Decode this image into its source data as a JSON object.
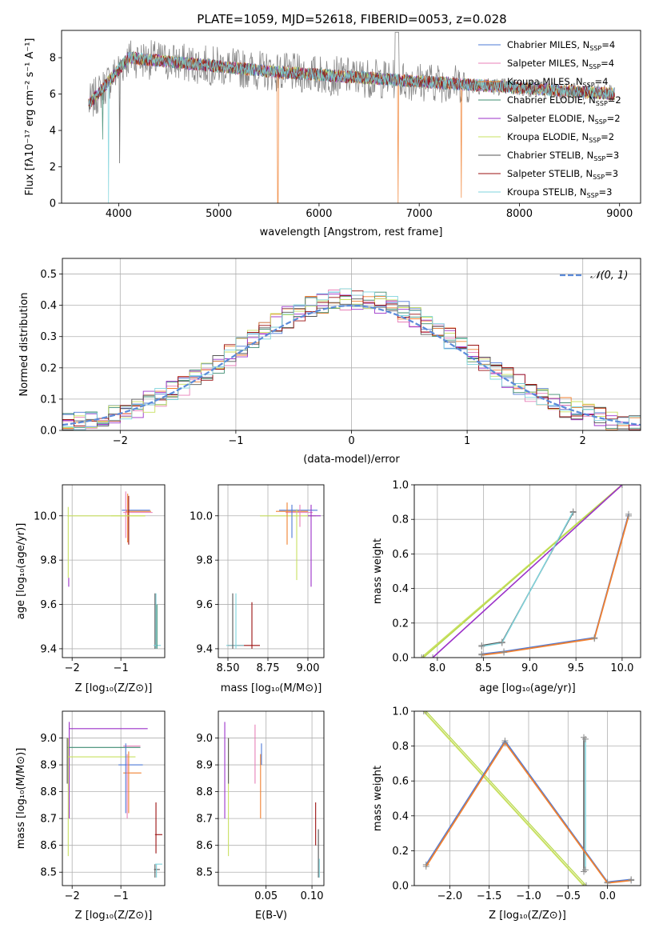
{
  "chart_data": [
    {
      "type": "line",
      "title": "PLATE=1059, MJD=52618, FIBERID=0053, z=0.028",
      "xlabel": "wavelength [Angstrom, rest frame]",
      "ylabel": "Flux [fλ10⁻¹⁷ erg cm⁻² s⁻¹ A⁻¹]",
      "xlim": [
        3430,
        9210
      ],
      "ylim": [
        0,
        9.5
      ],
      "xticks": [
        4000,
        5000,
        6000,
        7000,
        8000,
        9000
      ],
      "yticks": [
        0,
        2,
        4,
        6,
        8
      ],
      "grid": false,
      "legend_position": "top-right",
      "spectrum_range": [
        3700,
        8950
      ],
      "series": [
        {
          "name": "Chabrier MILES, N_SSP=4",
          "label_main": "Chabrier MILES, N",
          "label_sub": "SSP",
          "label_tail": "=4",
          "color": "#4e79d6"
        },
        {
          "name": "Salpeter MILES, N_SSP=4",
          "label_main": "Salpeter MILES, N",
          "label_sub": "SSP",
          "label_tail": "=4",
          "color": "#e87fb8"
        },
        {
          "name": "Kroupa MILES, N_SSP=4",
          "label_main": "Kroupa MILES, N",
          "label_sub": "SSP",
          "label_tail": "=4",
          "color": "#f08030"
        },
        {
          "name": "Chabrier ELODIE, N_SSP=2",
          "label_main": "Chabrier ELODIE, N",
          "label_sub": "SSP",
          "label_tail": "=2",
          "color": "#3f8c72"
        },
        {
          "name": "Salpeter ELODIE, N_SSP=2",
          "label_main": "Salpeter ELODIE, N",
          "label_sub": "SSP",
          "label_tail": "=2",
          "color": "#9b30c8"
        },
        {
          "name": "Kroupa ELODIE, N_SSP=2",
          "label_main": "Kroupa ELODIE, N",
          "label_sub": "SSP",
          "label_tail": "=2",
          "color": "#c8e060"
        },
        {
          "name": "Chabrier STELIB, N_SSP=3",
          "label_main": "Chabrier STELIB, N",
          "label_sub": "SSP",
          "label_tail": "=3",
          "color": "#555555"
        },
        {
          "name": "Salpeter STELIB, N_SSP=3",
          "label_main": "Salpeter STELIB, N",
          "label_sub": "SSP",
          "label_tail": "=3",
          "color": "#9b1111"
        },
        {
          "name": "Kroupa STELIB, N_SSP=3",
          "label_main": "Kroupa STELIB, N",
          "label_sub": "SSP",
          "label_tail": "=3",
          "color": "#7fd4dc"
        }
      ],
      "data_series_color": "#888888"
    },
    {
      "type": "area",
      "xlabel": "(data-model)/error",
      "ylabel": "Normed distribution",
      "xlim": [
        -2.5,
        2.5
      ],
      "ylim": [
        0,
        0.55
      ],
      "xticks": [
        -2,
        -1,
        0,
        1,
        2
      ],
      "yticks": [
        0.0,
        0.1,
        0.2,
        0.3,
        0.4,
        0.5
      ],
      "grid": true,
      "legend_position": "top-right",
      "bin_width": 0.1,
      "gaussian_label": "𝒩(0, 1)",
      "gaussian_color": "#5b8bd9",
      "histogram_peak": 0.5
    },
    {
      "type": "scatter",
      "xlabel": "Z [log₁₀(Z/Z⊙)]",
      "ylabel": "age  [log₁₀(age/yr)]",
      "xlim": [
        -2.2,
        -0.1
      ],
      "ylim": [
        9.36,
        10.14
      ],
      "xticks": [
        -2,
        -1
      ],
      "yticks": [
        9.4,
        9.6,
        9.8,
        10.0
      ],
      "grid": true
    },
    {
      "type": "scatter",
      "xlabel": "mass [log₁₀(M/M⊙)]",
      "ylabel": "",
      "xlim": [
        8.44,
        9.1
      ],
      "ylim": [
        9.36,
        10.14
      ],
      "xticks": [
        8.5,
        8.75,
        9.0
      ],
      "yticks": [
        9.4,
        9.6,
        9.8,
        10.0
      ],
      "grid": true
    },
    {
      "type": "line",
      "xlabel": "age  [log₁₀(age/yr)]",
      "ylabel": "mass weight",
      "xlim": [
        7.75,
        10.2
      ],
      "ylim": [
        0,
        1
      ],
      "xticks": [
        8.0,
        8.5,
        9.0,
        9.5,
        10.0
      ],
      "yticks": [
        0.0,
        0.2,
        0.4,
        0.6,
        0.8,
        1.0
      ],
      "grid": true
    },
    {
      "type": "scatter",
      "xlabel": "Z [log₁₀(Z/Z⊙)]",
      "ylabel": "mass [log₁₀(M/M⊙)]",
      "xlim": [
        -2.2,
        -0.1
      ],
      "ylim": [
        8.45,
        9.1
      ],
      "xticks": [
        -2,
        -1
      ],
      "yticks": [
        8.5,
        8.6,
        8.7,
        8.8,
        8.9,
        9.0
      ],
      "grid": true
    },
    {
      "type": "scatter",
      "xlabel": "E(B-V)",
      "ylabel": "",
      "xlim": [
        -0.002,
        0.113
      ],
      "ylim": [
        8.45,
        9.1
      ],
      "xticks": [
        0.05,
        0.1
      ],
      "yticks": [
        8.5,
        8.6,
        8.7,
        8.8,
        8.9,
        9.0
      ],
      "grid": true
    },
    {
      "type": "line",
      "xlabel": "Z [log₁₀(Z/Z⊙)]",
      "ylabel": "mass weight",
      "xlim": [
        -2.45,
        0.42
      ],
      "ylim": [
        0,
        1
      ],
      "xticks": [
        -2.0,
        -1.5,
        -1.0,
        -0.5,
        0.0
      ],
      "yticks": [
        0.0,
        0.2,
        0.4,
        0.6,
        0.8,
        1.0
      ],
      "grid": true
    }
  ]
}
